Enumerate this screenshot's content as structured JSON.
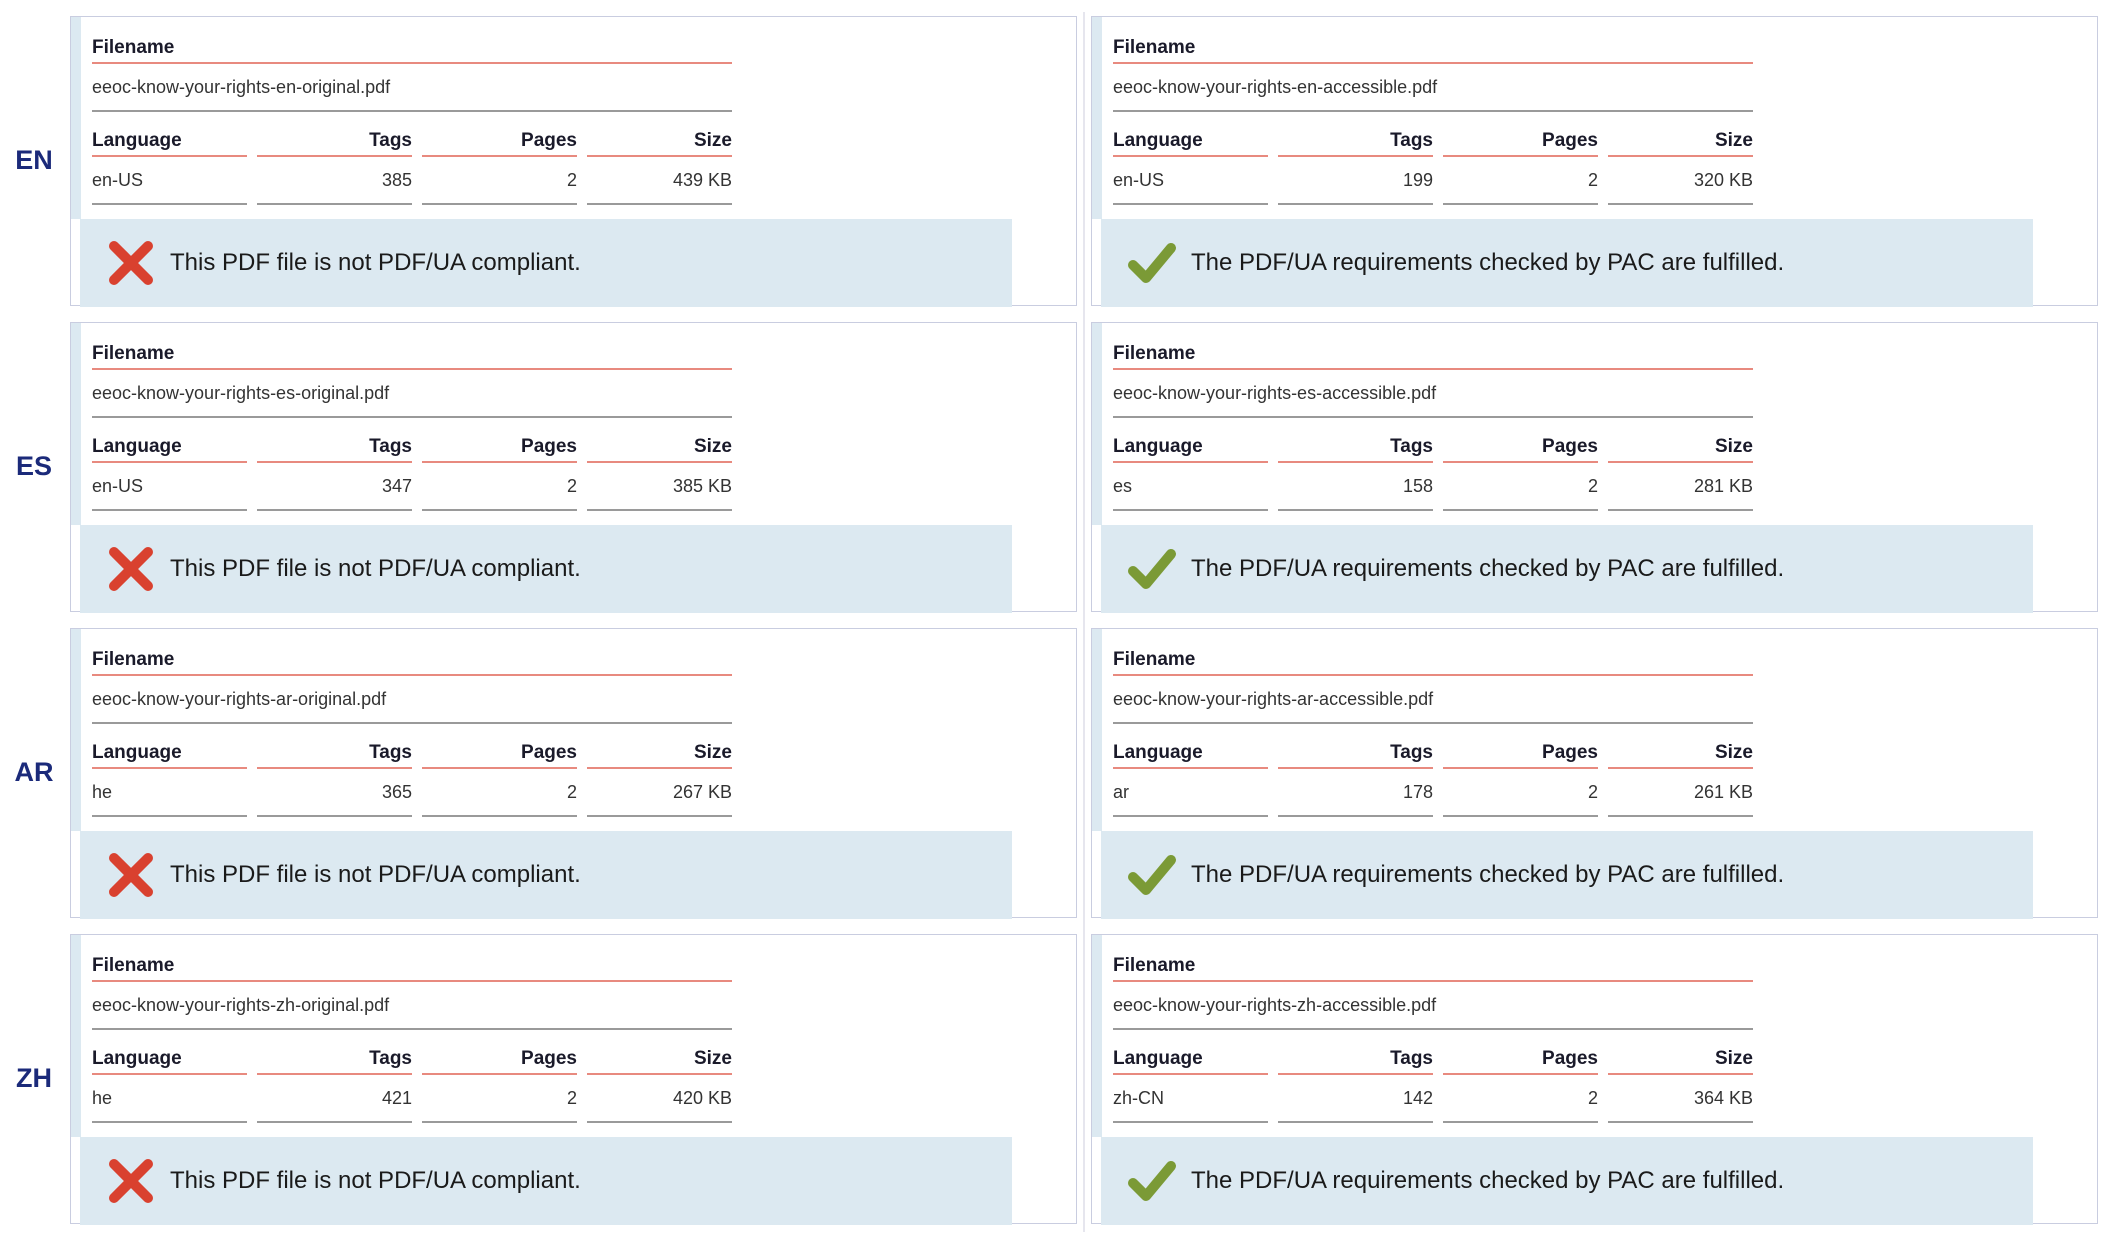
{
  "headers": {
    "filename": "Filename",
    "language": "Language",
    "tags": "Tags",
    "pages": "Pages",
    "size": "Size"
  },
  "colors": {
    "fail": "#d9412f",
    "pass": "#7b9a36",
    "banner": "#dce9f1",
    "lang_label": "#1b2a7a"
  },
  "rows": [
    {
      "label": "EN",
      "original": {
        "filename": "eeoc-know-your-rights-en-original.pdf",
        "language": "en-US",
        "tags": "385",
        "pages": "2",
        "size": "439 KB",
        "status": "fail",
        "message": "This PDF file is not PDF/UA compliant."
      },
      "accessible": {
        "filename": "eeoc-know-your-rights-en-accessible.pdf",
        "language": "en-US",
        "tags": "199",
        "pages": "2",
        "size": "320 KB",
        "status": "pass",
        "message": "The PDF/UA requirements checked by PAC are fulfilled."
      }
    },
    {
      "label": "ES",
      "original": {
        "filename": "eeoc-know-your-rights-es-original.pdf",
        "language": "en-US",
        "tags": "347",
        "pages": "2",
        "size": "385 KB",
        "status": "fail",
        "message": "This PDF file is not PDF/UA compliant."
      },
      "accessible": {
        "filename": "eeoc-know-your-rights-es-accessible.pdf",
        "language": "es",
        "tags": "158",
        "pages": "2",
        "size": "281 KB",
        "status": "pass",
        "message": "The PDF/UA requirements checked by PAC are fulfilled."
      }
    },
    {
      "label": "AR",
      "original": {
        "filename": "eeoc-know-your-rights-ar-original.pdf",
        "language": "he",
        "tags": "365",
        "pages": "2",
        "size": "267 KB",
        "status": "fail",
        "message": "This PDF file is not PDF/UA compliant."
      },
      "accessible": {
        "filename": "eeoc-know-your-rights-ar-accessible.pdf",
        "language": "ar",
        "tags": "178",
        "pages": "2",
        "size": "261 KB",
        "status": "pass",
        "message": "The PDF/UA requirements checked by PAC are fulfilled."
      }
    },
    {
      "label": "ZH",
      "original": {
        "filename": "eeoc-know-your-rights-zh-original.pdf",
        "language": "he",
        "tags": "421",
        "pages": "2",
        "size": "420 KB",
        "status": "fail",
        "message": "This PDF file is not PDF/UA compliant."
      },
      "accessible": {
        "filename": "eeoc-know-your-rights-zh-accessible.pdf",
        "language": "zh-CN",
        "tags": "142",
        "pages": "2",
        "size": "364 KB",
        "status": "pass",
        "message": "The PDF/UA requirements checked by PAC are fulfilled."
      }
    }
  ]
}
